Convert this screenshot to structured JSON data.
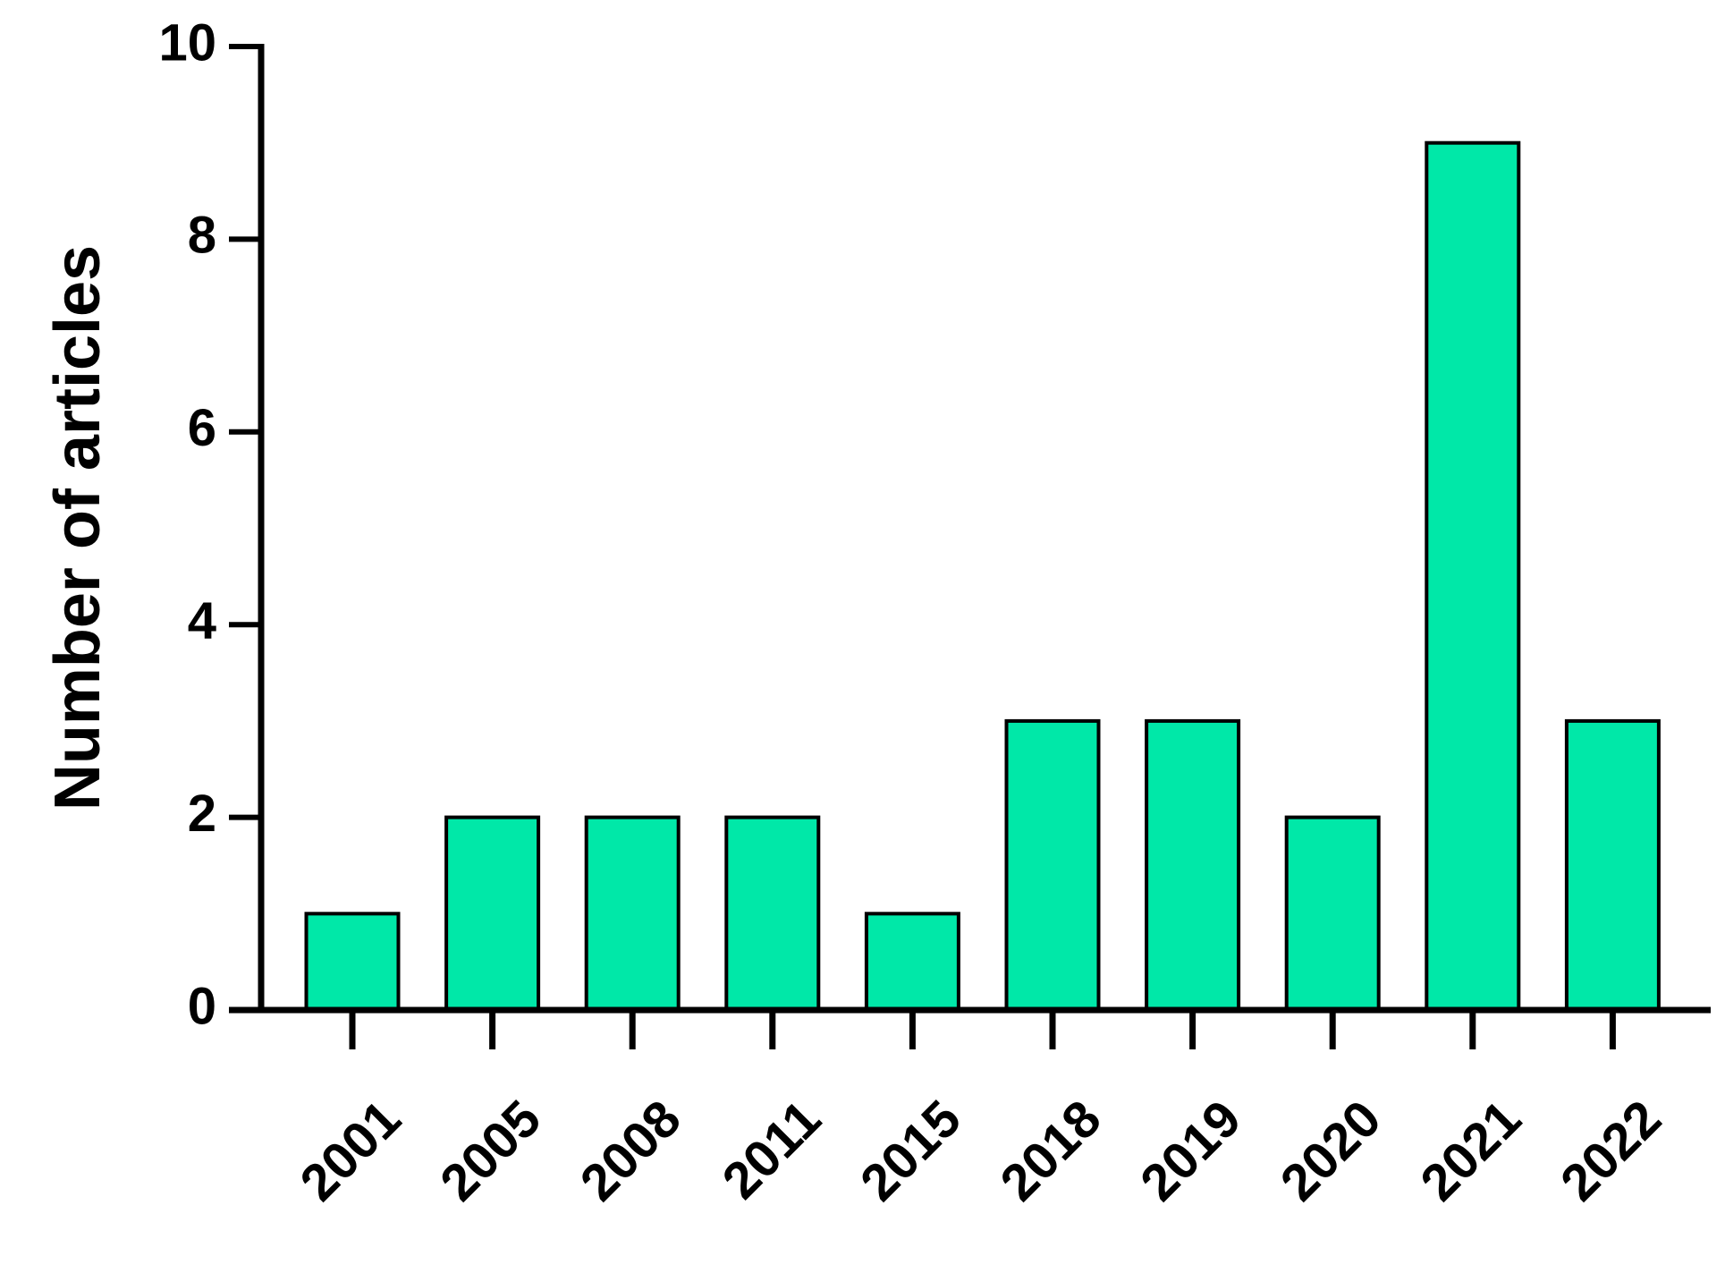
{
  "chart_data": {
    "type": "bar",
    "y_axis_label": "Number of articles",
    "categories": [
      "2001",
      "2005",
      "2008",
      "2011",
      "2015",
      "2018",
      "2019",
      "2020",
      "2021",
      "2022"
    ],
    "values": [
      1,
      2,
      2,
      2,
      1,
      3,
      3,
      2,
      9,
      3
    ],
    "color": "#00e8a8",
    "ylim": [
      0,
      10
    ],
    "yticks": [
      0,
      2,
      4,
      6,
      8,
      10
    ],
    "grid": false
  }
}
